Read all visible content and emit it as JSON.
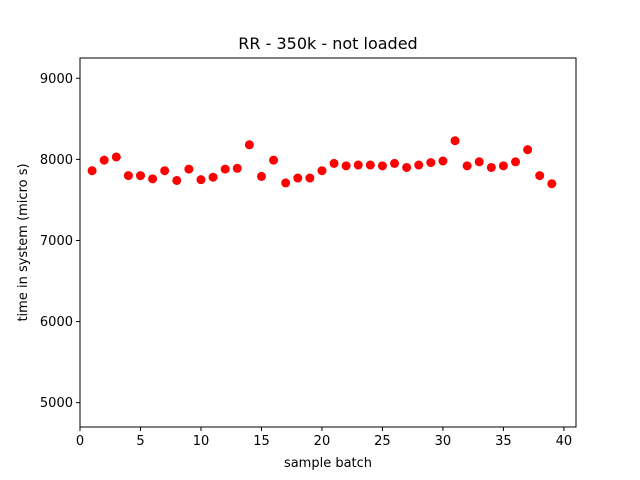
{
  "chart_data": {
    "type": "scatter",
    "title": "RR - 350k - not loaded",
    "xlabel": "sample batch",
    "ylabel": "time in system (micro s)",
    "xlim": [
      0,
      41
    ],
    "ylim": [
      4700,
      9250
    ],
    "xticks": [
      0,
      5,
      10,
      15,
      20,
      25,
      30,
      35,
      40
    ],
    "yticks": [
      5000,
      6000,
      7000,
      8000,
      9000
    ],
    "grid": false,
    "marker_color": "#ff0000",
    "series": [
      {
        "x": [
          1,
          2,
          3,
          4,
          5,
          6,
          7,
          8,
          9,
          10,
          11,
          12,
          13,
          14,
          15,
          16,
          17,
          18,
          19,
          20,
          21,
          22,
          23,
          24,
          25,
          26,
          27,
          28,
          29,
          30,
          31,
          32,
          33,
          34,
          35,
          36,
          37,
          38,
          39
        ],
        "values": [
          7860,
          7990,
          8030,
          7800,
          7800,
          7760,
          7860,
          7740,
          7880,
          7750,
          7780,
          7880,
          7890,
          8180,
          7790,
          7990,
          7710,
          7770,
          7770,
          7860,
          7950,
          7920,
          7930,
          7930,
          7920,
          7950,
          7900,
          7930,
          7960,
          7980,
          8230,
          7920,
          7970,
          7900,
          7920,
          7970,
          8120,
          7800,
          7700
        ]
      }
    ]
  }
}
